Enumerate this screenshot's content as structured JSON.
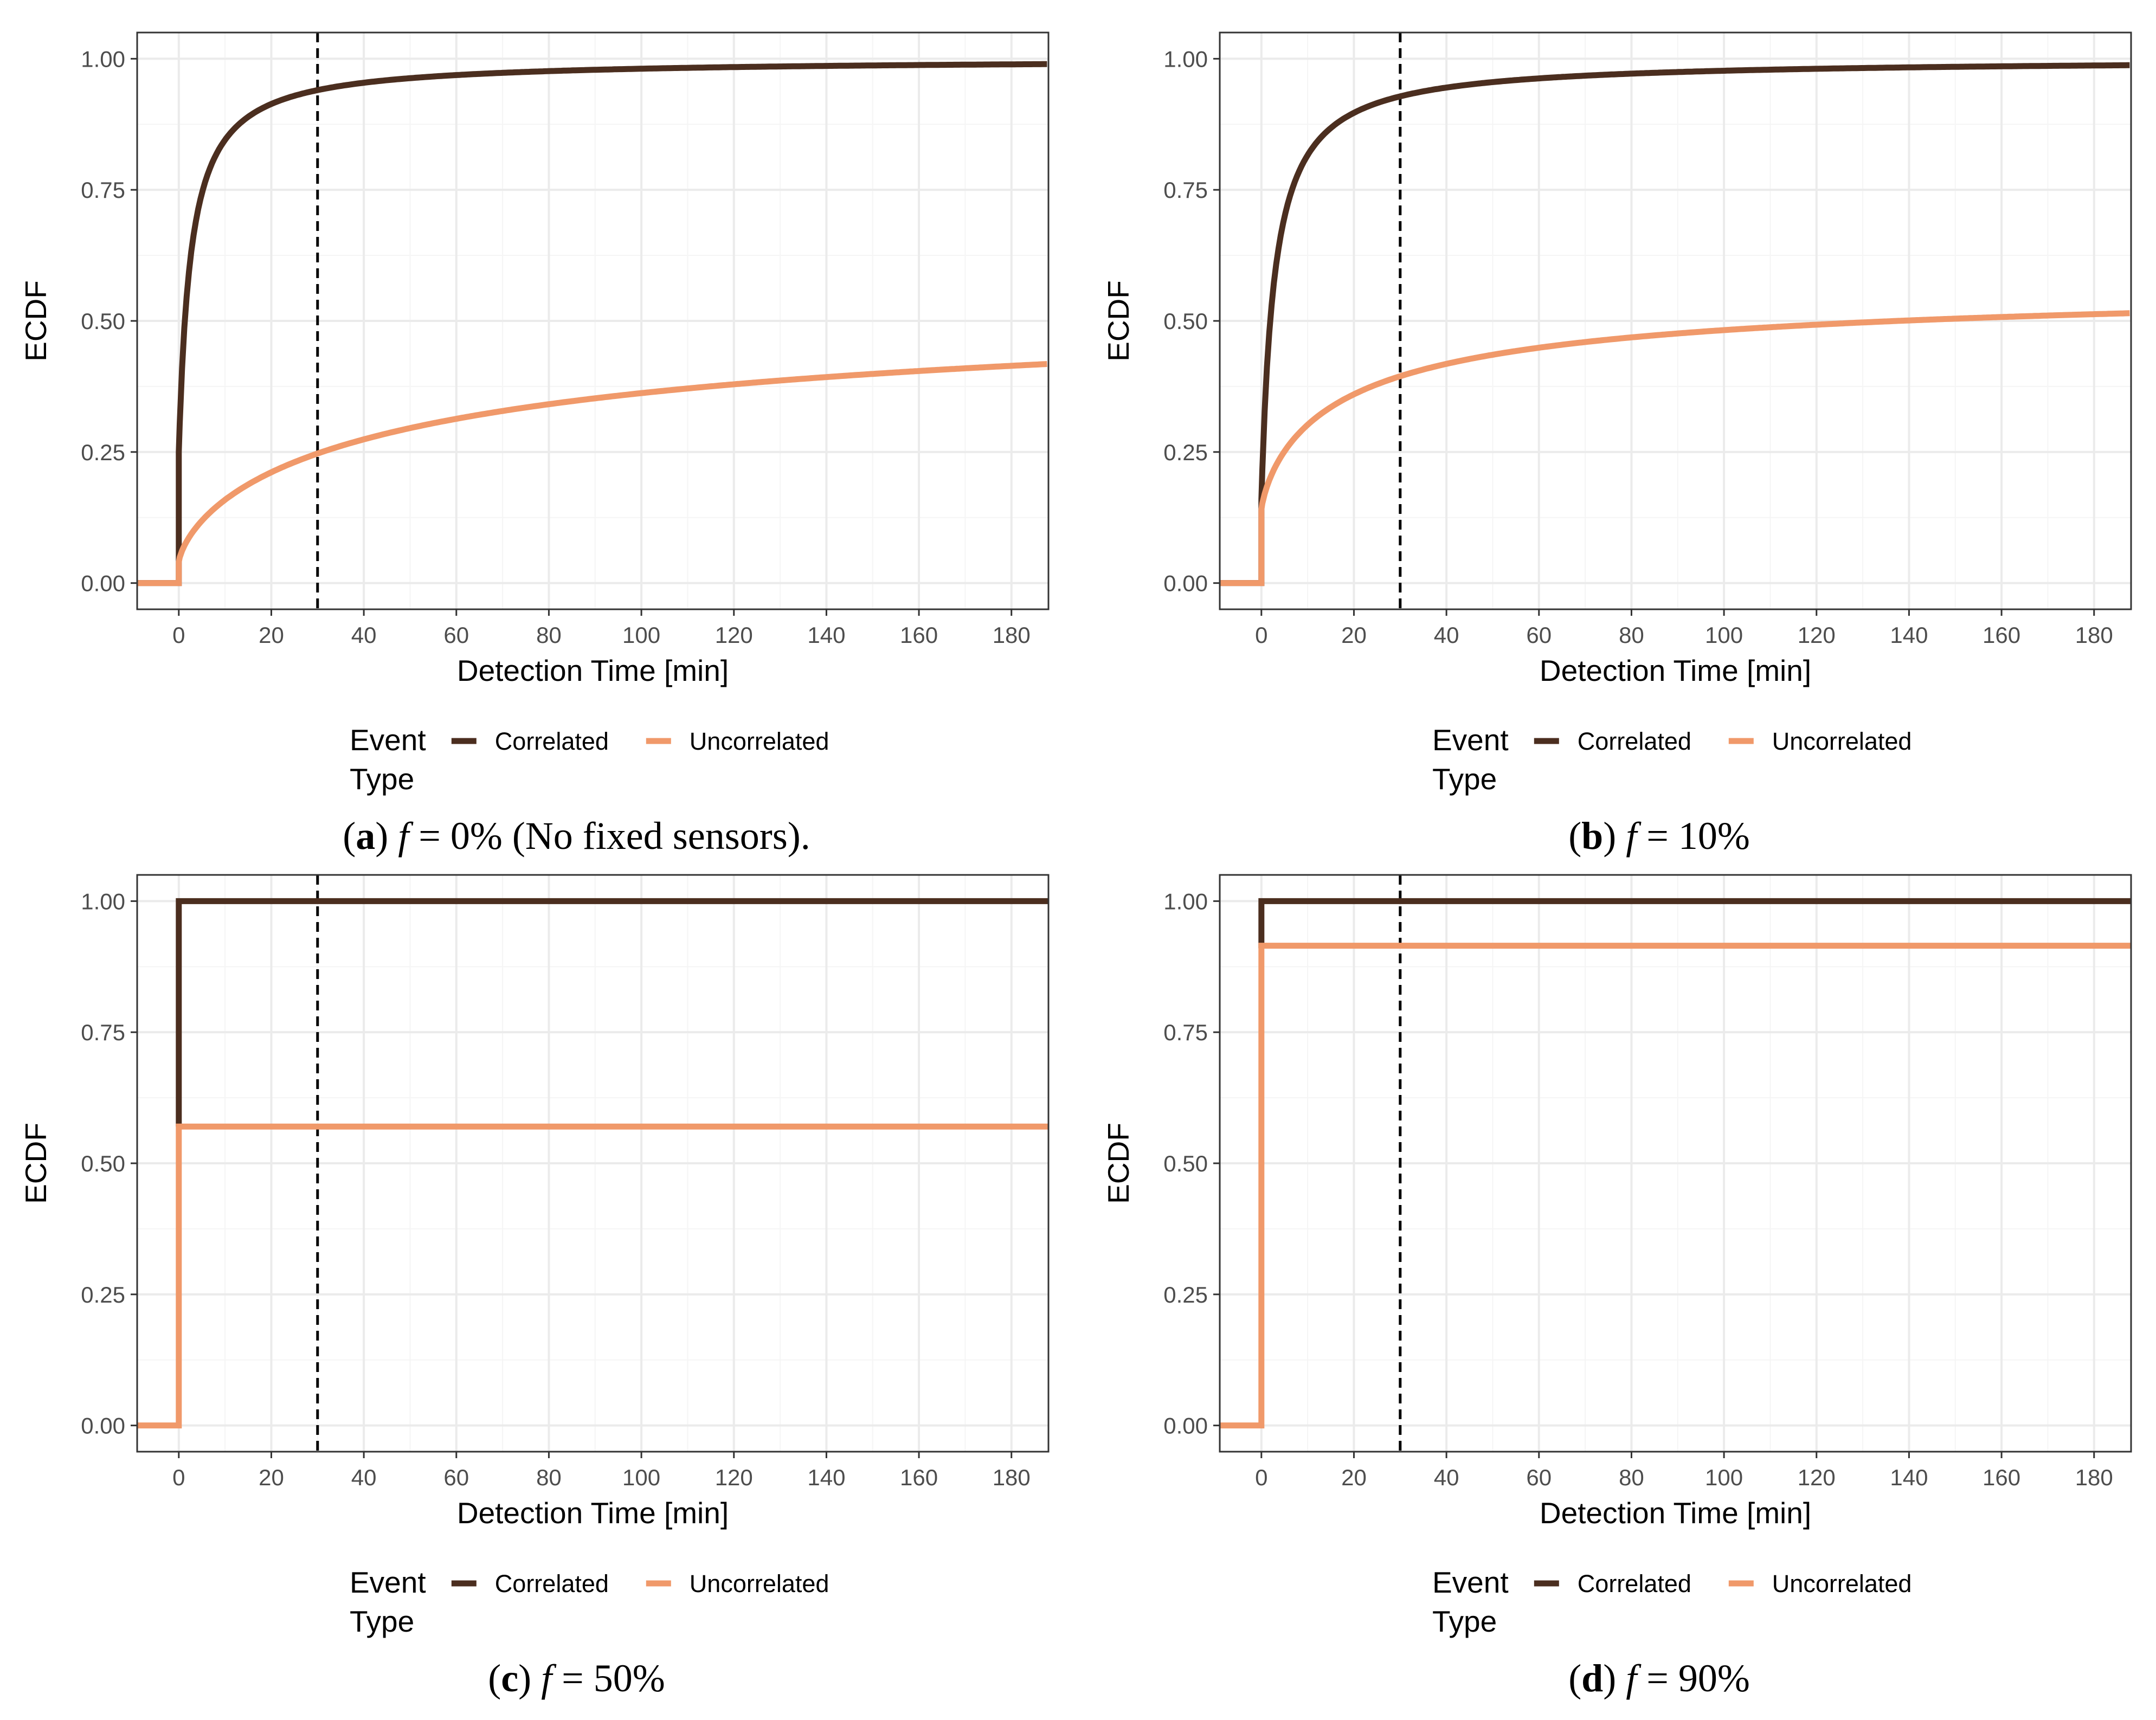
{
  "colors": {
    "correlated": "#4b2e1f",
    "uncorrelated": "#f0996a",
    "grid_major": "#ebebeb",
    "grid_minor": "#f5f5f5",
    "panel_border": "#333333",
    "threshold_line": "#000000"
  },
  "shared": {
    "xlabel": "Detection Time [min]",
    "ylabel": "ECDF",
    "xlim": [
      -9,
      188
    ],
    "ylim": [
      -0.05,
      1.05
    ],
    "x_ticks": [
      0,
      20,
      40,
      60,
      80,
      100,
      120,
      140,
      160,
      180
    ],
    "x_tick_labels": [
      "0",
      "20",
      "40",
      "60",
      "80",
      "100",
      "120",
      "140",
      "160",
      "180"
    ],
    "y_ticks": [
      0,
      0.25,
      0.5,
      0.75,
      1
    ],
    "y_tick_labels": [
      "0.00",
      "0.25",
      "0.50",
      "0.75",
      "1.00"
    ],
    "threshold_x": 30,
    "legend_title_line1": "Event",
    "legend_title_line2": "Type",
    "legend_entries": [
      "Correlated",
      "Uncorrelated"
    ]
  },
  "chart_data": [
    {
      "type": "line",
      "caption_letter": "a",
      "caption_rest": "= 0% (No fixed sensors).",
      "caption_var": "f",
      "series": [
        {
          "name": "Correlated",
          "kind": "curve",
          "x0": 0,
          "jump_from": 0,
          "jump_to": 0.25,
          "plateau": 1.0,
          "half_x": 2.6,
          "power": 1.0,
          "x": [
            -9,
            0,
            5,
            10,
            20,
            30,
            60,
            100,
            188
          ],
          "values": [
            0,
            0.25,
            0.71,
            0.83,
            0.92,
            0.94,
            0.97,
            0.985,
            0.993
          ]
        },
        {
          "name": "Uncorrelated",
          "kind": "curve",
          "x0": 0,
          "jump_from": 0,
          "jump_to": 0.04,
          "plateau": 0.58,
          "half_x": 58,
          "power": 0.72,
          "x": [
            -9,
            0,
            10,
            20,
            30,
            60,
            100,
            140,
            188
          ],
          "values": [
            0,
            0.04,
            0.2,
            0.245,
            0.28,
            0.33,
            0.365,
            0.385,
            0.405
          ]
        }
      ]
    },
    {
      "type": "line",
      "caption_letter": "b",
      "caption_rest": "= 10%",
      "caption_var": "f",
      "series": [
        {
          "name": "Correlated",
          "kind": "curve",
          "x0": 0,
          "jump_from": 0,
          "jump_to": 0.16,
          "plateau": 1.0,
          "half_x": 2.8,
          "power": 1.0,
          "x": [
            -9,
            0,
            5,
            10,
            20,
            30,
            60,
            100,
            188
          ],
          "values": [
            0,
            0.16,
            0.69,
            0.82,
            0.92,
            0.94,
            0.97,
            0.985,
            0.993
          ]
        },
        {
          "name": "Uncorrelated",
          "kind": "curve",
          "x0": 0,
          "jump_from": 0,
          "jump_to": 0.14,
          "plateau": 0.58,
          "half_x": 20,
          "power": 0.78,
          "x": [
            -9,
            0,
            10,
            20,
            30,
            60,
            100,
            140,
            188
          ],
          "values": [
            0,
            0.14,
            0.31,
            0.36,
            0.385,
            0.425,
            0.455,
            0.47,
            0.48
          ]
        }
      ]
    },
    {
      "type": "line",
      "caption_letter": "c",
      "caption_rest": "= 50%",
      "caption_var": "f",
      "series": [
        {
          "name": "Correlated",
          "kind": "step",
          "x0": 0,
          "jump_from": 0.57,
          "jump_to": 1.0,
          "x": [
            0,
            0,
            188
          ],
          "values": [
            0.57,
            1.0,
            1.0
          ]
        },
        {
          "name": "Uncorrelated",
          "kind": "step",
          "x0": 0,
          "jump_from": 0,
          "jump_to": 0.57,
          "x": [
            -9,
            0,
            0,
            188
          ],
          "values": [
            0,
            0,
            0.57,
            0.57
          ]
        }
      ]
    },
    {
      "type": "line",
      "caption_letter": "d",
      "caption_rest": "= 90%",
      "caption_var": "f",
      "series": [
        {
          "name": "Correlated",
          "kind": "step",
          "x0": 0,
          "jump_from": 0.91,
          "jump_to": 1.0,
          "x": [
            0,
            0,
            188
          ],
          "values": [
            0.91,
            1.0,
            1.0
          ]
        },
        {
          "name": "Uncorrelated",
          "kind": "step",
          "x0": 0,
          "jump_from": 0,
          "jump_to": 0.915,
          "x": [
            -9,
            0,
            0,
            188
          ],
          "values": [
            0,
            0,
            0.915,
            0.915
          ]
        }
      ]
    }
  ]
}
